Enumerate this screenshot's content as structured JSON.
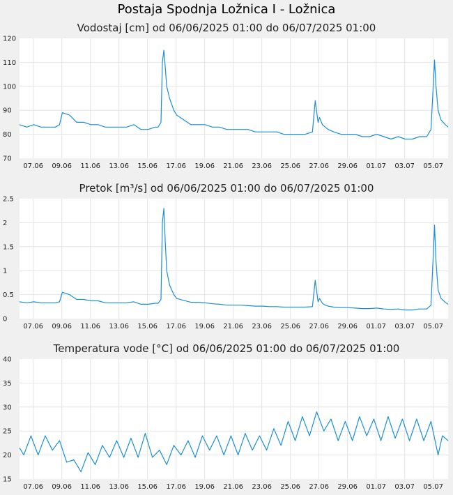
{
  "page": {
    "title": "Postaja Spodnja Ložnica I - Ložnica"
  },
  "colors": {
    "line": "#1a8fd6",
    "grid": "#e4e4e4",
    "plot_bg": "#ffffff",
    "page_bg": "#f0f0f0"
  },
  "chart_data": [
    {
      "type": "line",
      "title": "Vodostaj [cm] od 06/06/2025 01:00 do 06/07/2025 01:00",
      "xlabel": "",
      "ylabel": "",
      "ylim": [
        70,
        120
      ],
      "yticks": [
        "70",
        "80",
        "90",
        "100",
        "110",
        "120"
      ],
      "xtick_labels": [
        "07.06",
        "09.06",
        "11.06",
        "13.06",
        "15.06",
        "17.06",
        "19.06",
        "21.06",
        "23.06",
        "25.06",
        "27.06",
        "29.06",
        "01.07",
        "03.07",
        "05.07"
      ],
      "grid": true,
      "series": [
        {
          "x": [
            0,
            0.5,
            1,
            1.5,
            2,
            2.5,
            2.8,
            3,
            3.5,
            4,
            4.5,
            5,
            5.5,
            6,
            6.5,
            7,
            7.5,
            8,
            8.5,
            9,
            9.5,
            9.7,
            9.9,
            10,
            10.1,
            10.2,
            10.3,
            10.5,
            10.8,
            11,
            11.5,
            12,
            12.5,
            13,
            13.5,
            14,
            14.5,
            15,
            15.5,
            16,
            16.5,
            17,
            17.5,
            18,
            18.5,
            19,
            19.5,
            20,
            20.5,
            20.7,
            20.9,
            21.0,
            21.2,
            21.4,
            21.6,
            22,
            22.5,
            23,
            23.5,
            24,
            24.5,
            25,
            25.5,
            26,
            26.5,
            27,
            27.5,
            28,
            28.5,
            28.8,
            29.0,
            29.05,
            29.15,
            29.3,
            29.5,
            29.8,
            30
          ],
          "values": [
            84,
            83,
            84,
            83,
            83,
            83,
            84,
            89,
            88,
            85,
            85,
            84,
            84,
            83,
            83,
            83,
            83,
            84,
            82,
            82,
            83,
            83,
            85,
            110,
            115,
            108,
            100,
            95,
            90,
            88,
            86,
            84,
            84,
            84,
            83,
            83,
            82,
            82,
            82,
            82,
            81,
            81,
            81,
            81,
            80,
            80,
            80,
            80,
            81,
            94,
            85,
            87,
            84,
            83,
            82,
            81,
            80,
            80,
            80,
            79,
            79,
            80,
            79,
            78,
            79,
            78,
            78,
            79,
            79,
            82,
            105,
            111,
            100,
            90,
            86,
            84,
            83
          ]
        }
      ]
    },
    {
      "type": "line",
      "title": "Pretok [m³/s] od 06/06/2025 01:00 do 06/07/2025 01:00",
      "xlabel": "",
      "ylabel": "",
      "ylim": [
        0,
        2.5
      ],
      "yticks": [
        "0",
        "0.5",
        "1",
        "1.5",
        "2",
        "2.5"
      ],
      "xtick_labels": [
        "07.06",
        "09.06",
        "11.06",
        "13.06",
        "15.06",
        "17.06",
        "19.06",
        "21.06",
        "23.06",
        "25.06",
        "27.06",
        "29.06",
        "01.07",
        "03.07",
        "05.07"
      ],
      "grid": true,
      "series": [
        {
          "x": [
            0,
            0.5,
            1,
            1.5,
            2,
            2.5,
            2.8,
            3,
            3.5,
            4,
            4.5,
            5,
            5.5,
            6,
            6.5,
            7,
            7.5,
            8,
            8.5,
            9,
            9.5,
            9.7,
            9.9,
            10,
            10.1,
            10.2,
            10.3,
            10.5,
            10.8,
            11,
            11.5,
            12,
            12.5,
            13,
            13.5,
            14,
            14.5,
            15,
            15.5,
            16,
            16.5,
            17,
            17.5,
            18,
            18.5,
            19,
            19.5,
            20,
            20.5,
            20.7,
            20.9,
            21.0,
            21.2,
            21.4,
            21.6,
            22,
            22.5,
            23,
            23.5,
            24,
            24.5,
            25,
            25.5,
            26,
            26.5,
            27,
            27.5,
            28,
            28.5,
            28.8,
            29.0,
            29.05,
            29.15,
            29.3,
            29.5,
            29.8,
            30
          ],
          "values": [
            0.35,
            0.33,
            0.35,
            0.33,
            0.33,
            0.33,
            0.35,
            0.55,
            0.5,
            0.4,
            0.4,
            0.37,
            0.37,
            0.33,
            0.33,
            0.33,
            0.33,
            0.35,
            0.3,
            0.3,
            0.32,
            0.32,
            0.4,
            2.0,
            2.3,
            1.6,
            1.0,
            0.7,
            0.5,
            0.42,
            0.38,
            0.34,
            0.34,
            0.33,
            0.31,
            0.3,
            0.28,
            0.28,
            0.28,
            0.27,
            0.26,
            0.26,
            0.25,
            0.25,
            0.24,
            0.24,
            0.24,
            0.24,
            0.25,
            0.8,
            0.35,
            0.42,
            0.32,
            0.28,
            0.26,
            0.24,
            0.23,
            0.23,
            0.22,
            0.21,
            0.21,
            0.22,
            0.2,
            0.19,
            0.2,
            0.18,
            0.18,
            0.2,
            0.2,
            0.28,
            1.6,
            1.95,
            1.2,
            0.6,
            0.42,
            0.34,
            0.3
          ]
        }
      ]
    },
    {
      "type": "line",
      "title": "Temperatura vode [°C] od 06/06/2025 01:00 do 06/07/2025 01:00",
      "xlabel": "",
      "ylabel": "",
      "ylim": [
        15,
        40
      ],
      "yticks": [
        "15",
        "20",
        "25",
        "30",
        "35",
        "40"
      ],
      "xtick_labels": [
        "07.06",
        "09.06",
        "11.06",
        "13.06",
        "15.06",
        "17.06",
        "19.06",
        "21.06",
        "23.06",
        "25.06",
        "27.06",
        "29.06",
        "01.07",
        "03.07",
        "05.07"
      ],
      "grid": true,
      "series": [
        {
          "x": [
            0,
            0.3,
            0.8,
            1.3,
            1.8,
            2.3,
            2.8,
            3.3,
            3.8,
            4.3,
            4.8,
            5.3,
            5.8,
            6.3,
            6.8,
            7.3,
            7.8,
            8.3,
            8.8,
            9.3,
            9.8,
            10.3,
            10.8,
            11.3,
            11.8,
            12.3,
            12.8,
            13.3,
            13.8,
            14.3,
            14.8,
            15.3,
            15.8,
            16.3,
            16.8,
            17.3,
            17.8,
            18.3,
            18.8,
            19.3,
            19.8,
            20.3,
            20.8,
            21.3,
            21.8,
            22.3,
            22.8,
            23.3,
            23.8,
            24.3,
            24.8,
            25.3,
            25.8,
            26.3,
            26.8,
            27.3,
            27.8,
            28.3,
            28.8,
            29.3,
            29.6,
            30
          ],
          "values": [
            21.5,
            20,
            24,
            20,
            24,
            21,
            23,
            18.5,
            19,
            16.5,
            20.5,
            18,
            22,
            19.5,
            23,
            19.5,
            23.5,
            19.5,
            24.5,
            19.5,
            21,
            18,
            22,
            20,
            23,
            19.5,
            24,
            21,
            24,
            20,
            24,
            20,
            24.5,
            21,
            24,
            21,
            25.5,
            22,
            27,
            23,
            28,
            24,
            29,
            25,
            27.5,
            23,
            27,
            23,
            28,
            24,
            27.5,
            23,
            28,
            23.5,
            27.5,
            23,
            27.5,
            23,
            27,
            20,
            24,
            23
          ]
        }
      ]
    }
  ]
}
